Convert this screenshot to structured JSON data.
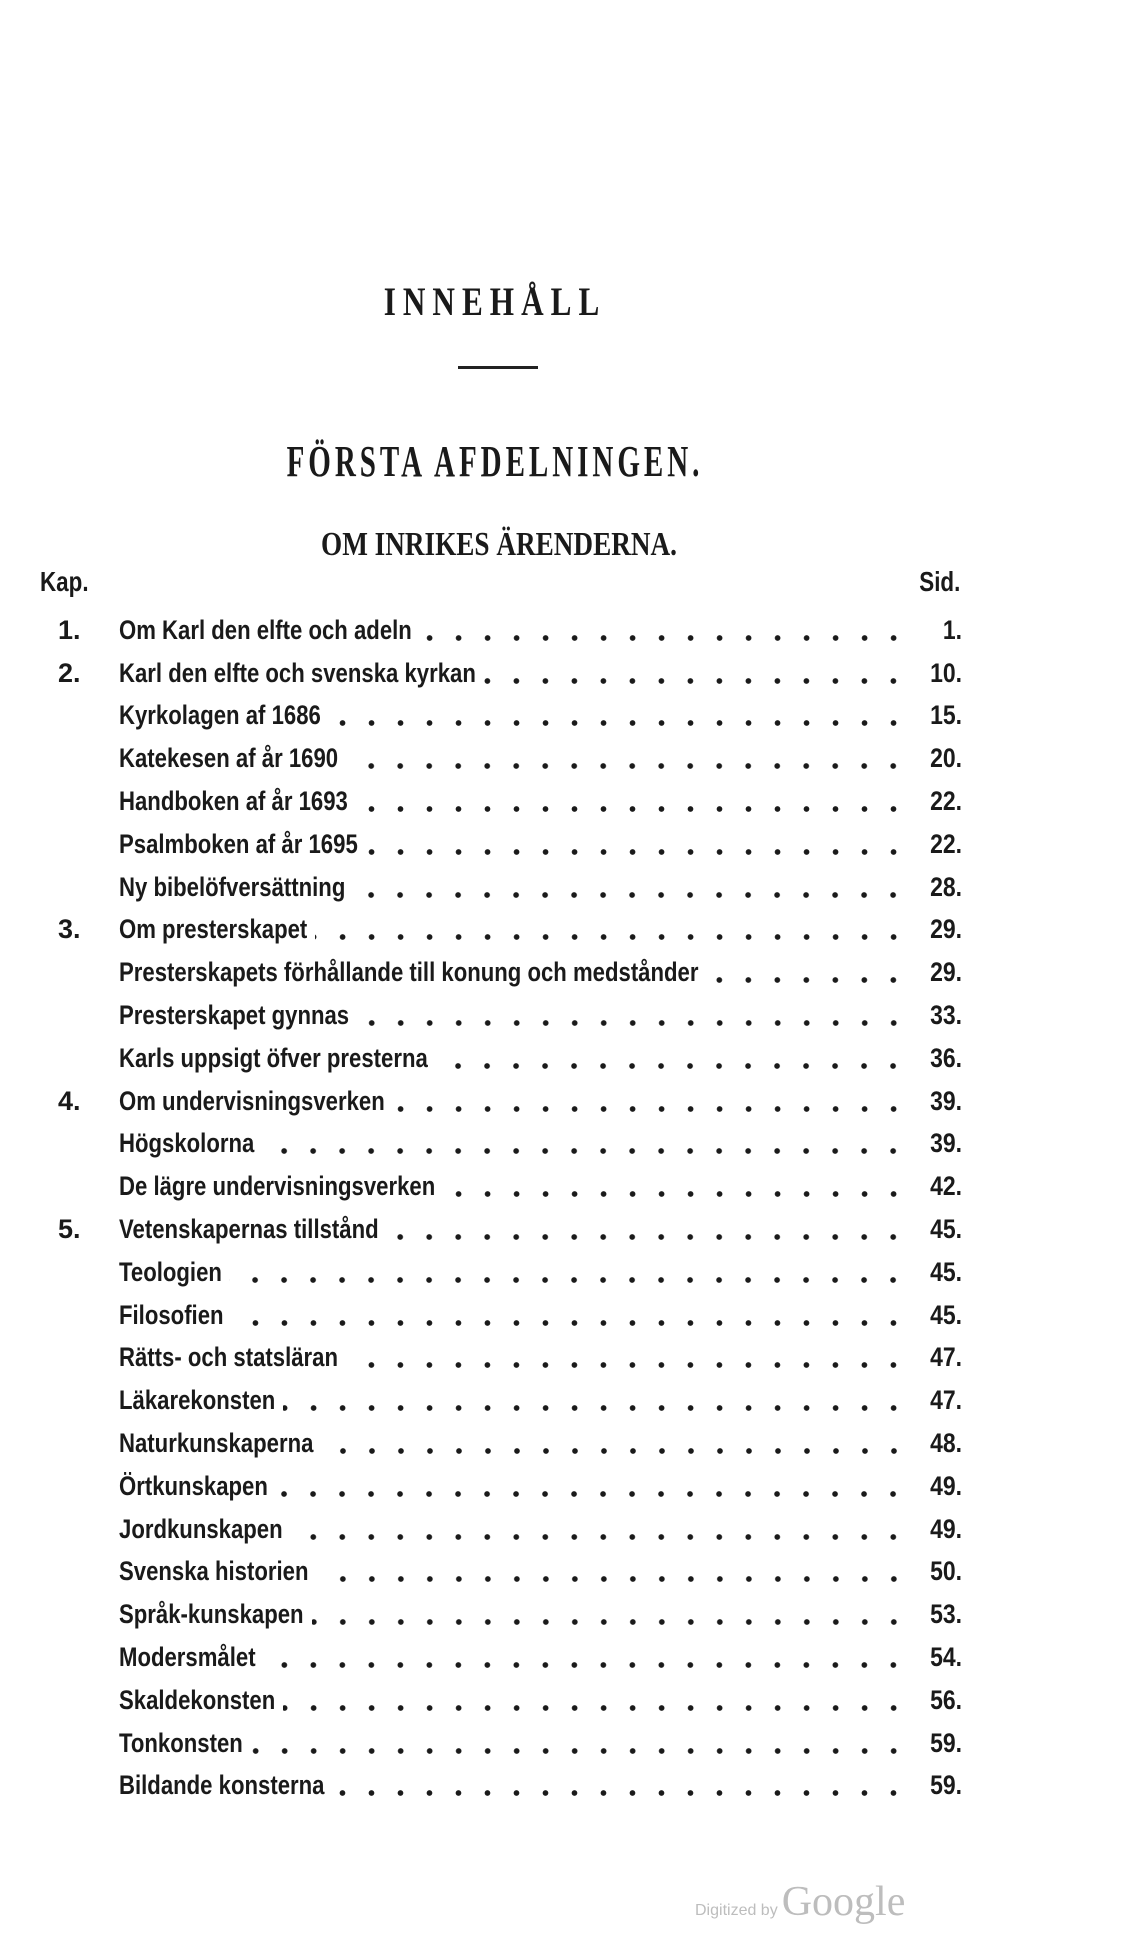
{
  "title": "INNEHÅLL",
  "section": "FÖRSTA AFDELNINGEN.",
  "subsection": "OM INRIKES ÄRENDERNA.",
  "columns": {
    "left": "Kap.",
    "right": "Sid."
  },
  "entries": [
    {
      "chapter": "1.",
      "title": "Om Karl den elfte och adeln",
      "page": "1."
    },
    {
      "chapter": "2.",
      "title": "Karl den elfte och svenska kyrkan",
      "page": "10."
    },
    {
      "chapter": "",
      "title": "Kyrkolagen af 1686",
      "page": "15."
    },
    {
      "chapter": "",
      "title": "Katekesen af år 1690",
      "page": "20."
    },
    {
      "chapter": "",
      "title": "Handboken af år 1693",
      "page": "22."
    },
    {
      "chapter": "",
      "title": "Psalmboken af år 1695",
      "page": "22."
    },
    {
      "chapter": "",
      "title": "Ny bibelöfversättning",
      "page": "28."
    },
    {
      "chapter": "3.",
      "title": "Om presterskapet",
      "page": "29."
    },
    {
      "chapter": "",
      "title": "Presterskapets förhållande till konung och medstånder",
      "page": "29."
    },
    {
      "chapter": "",
      "title": "Presterskapet gynnas",
      "page": "33."
    },
    {
      "chapter": "",
      "title": "Karls uppsigt öfver presterna",
      "page": "36."
    },
    {
      "chapter": "4.",
      "title": "Om undervisningsverken",
      "page": "39."
    },
    {
      "chapter": "",
      "title": "Högskolorna",
      "page": "39."
    },
    {
      "chapter": "",
      "title": "De lägre undervisningsverken",
      "page": "42."
    },
    {
      "chapter": "5.",
      "title": "Vetenskapernas tillstånd",
      "page": "45."
    },
    {
      "chapter": "",
      "title": "Teologien",
      "page": "45."
    },
    {
      "chapter": "",
      "title": "Filosofien",
      "page": "45."
    },
    {
      "chapter": "",
      "title": "Rätts- och statsläran",
      "page": "47."
    },
    {
      "chapter": "",
      "title": "Läkarekonsten",
      "page": "47."
    },
    {
      "chapter": "",
      "title": "Naturkunskaperna",
      "page": "48."
    },
    {
      "chapter": "",
      "title": "Örtkunskapen",
      "page": "49."
    },
    {
      "chapter": "",
      "title": "Jordkunskapen",
      "page": "49."
    },
    {
      "chapter": "",
      "title": "Svenska historien",
      "page": "50."
    },
    {
      "chapter": "",
      "title": "Språk-kunskapen",
      "page": "53."
    },
    {
      "chapter": "",
      "title": "Modersmålet",
      "page": "54."
    },
    {
      "chapter": "",
      "title": "Skaldekonsten",
      "page": "56."
    },
    {
      "chapter": "",
      "title": "Tonkonsten",
      "page": "59."
    },
    {
      "chapter": "",
      "title": "Bildande konsterna",
      "page": "59."
    }
  ],
  "watermark": {
    "prefix": "Digitized by",
    "brand": "Google"
  }
}
